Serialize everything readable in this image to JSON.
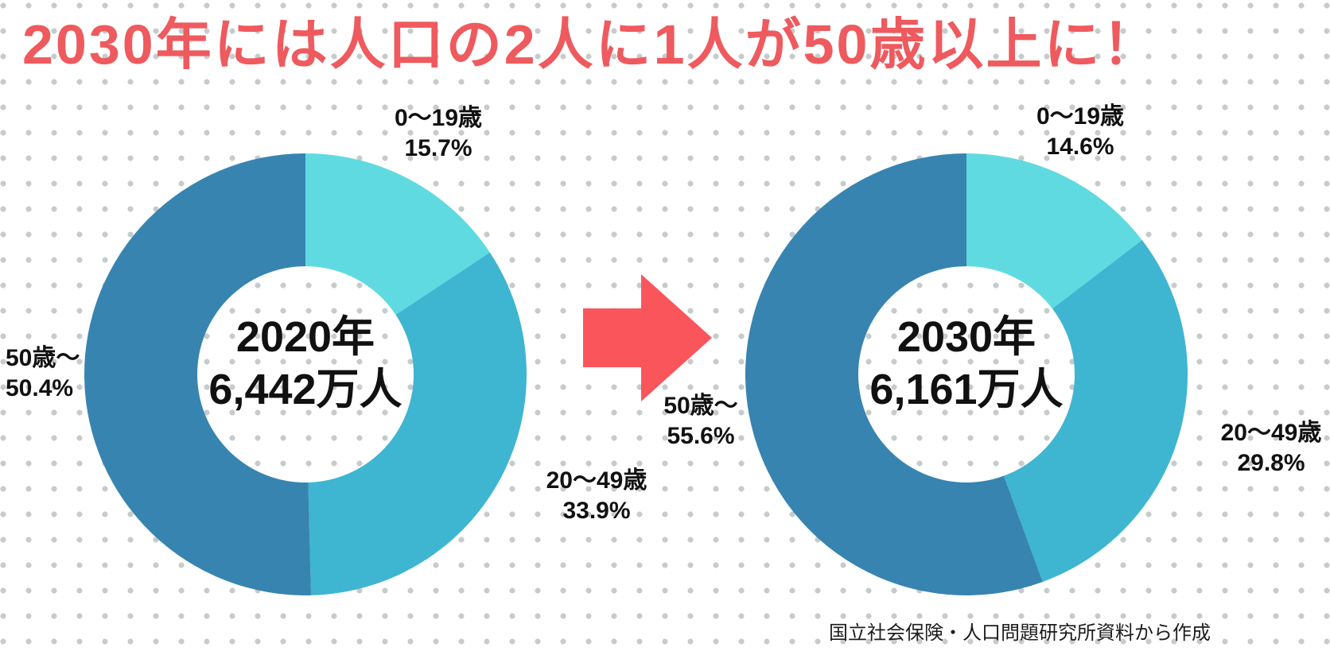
{
  "title": {
    "text": "2030年には人口の2人に1人が50歳以上に！",
    "color": "#EE5A5E"
  },
  "arrow": {
    "color": "#FA555B",
    "direction": "right"
  },
  "footer": {
    "source": "国立社会保険・人口問題研究所資料から作成"
  },
  "background": {
    "dot_color": "#C6CBCB"
  },
  "chart_data": [
    {
      "type": "pie",
      "subtype": "donut",
      "year": "2020年",
      "total": "6,442万人",
      "categories": [
        "0〜19歳",
        "20〜49歳",
        "50歳〜"
      ],
      "values": [
        15.7,
        33.9,
        50.4
      ],
      "colors": [
        "#60DAE1",
        "#3EB5D1",
        "#3784B1"
      ],
      "labels": [
        {
          "category": "0〜19歳",
          "value": "15.7%"
        },
        {
          "category": "20〜49歳",
          "value": "33.9%"
        },
        {
          "category": "50歳〜",
          "value": "50.4%"
        }
      ],
      "start_angle_deg": 0,
      "direction": "clockwise",
      "legend": "none"
    },
    {
      "type": "pie",
      "subtype": "donut",
      "year": "2030年",
      "total": "6,161万人",
      "categories": [
        "0〜19歳",
        "20〜49歳",
        "50歳〜"
      ],
      "values": [
        14.6,
        29.8,
        55.6
      ],
      "colors": [
        "#60DAE1",
        "#3EB5D1",
        "#3784B1"
      ],
      "labels": [
        {
          "category": "0〜19歳",
          "value": "14.6%"
        },
        {
          "category": "20〜49歳",
          "value": "29.8%"
        },
        {
          "category": "50歳〜",
          "value": "55.6%"
        }
      ],
      "start_angle_deg": 0,
      "direction": "clockwise",
      "legend": "none"
    }
  ]
}
